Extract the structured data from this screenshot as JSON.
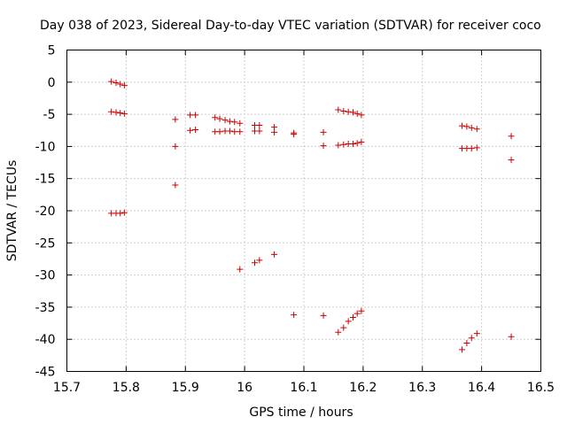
{
  "chart_data": {
    "type": "scatter",
    "title": "Day 038 of 2023, Sidereal Day-to-day VTEC variation (SDTVAR) for receiver coco",
    "xlabel": "GPS time / hours",
    "ylabel": "SDTVAR / TECUs",
    "xlim": [
      15.7,
      16.5
    ],
    "ylim": [
      -45,
      5
    ],
    "grid": true,
    "marker": "+",
    "color": "#cc0000",
    "x_ticks": [
      15.7,
      15.8,
      15.9,
      16.0,
      16.1,
      16.2,
      16.3,
      16.4,
      16.5
    ],
    "x_tick_labels": [
      "15.7",
      "15.8",
      "15.9",
      "16",
      "16.1",
      "16.2",
      "16.3",
      "16.4",
      "16.5"
    ],
    "y_ticks": [
      5,
      0,
      -5,
      -10,
      -15,
      -20,
      -25,
      -30,
      -35,
      -40,
      -45
    ],
    "y_tick_labels": [
      "5",
      "0",
      "-5",
      "-10",
      "-15",
      "-20",
      "-25",
      "-30",
      "-35",
      "-40",
      "-45"
    ],
    "series": [
      {
        "name": "SDTVAR",
        "points": [
          [
            15.775,
            0.1
          ],
          [
            15.783,
            -0.1
          ],
          [
            15.79,
            -0.3
          ],
          [
            15.797,
            -0.5
          ],
          [
            15.775,
            -4.6
          ],
          [
            15.783,
            -4.7
          ],
          [
            15.79,
            -4.8
          ],
          [
            15.797,
            -4.9
          ],
          [
            15.775,
            -20.4
          ],
          [
            15.783,
            -20.4
          ],
          [
            15.79,
            -20.4
          ],
          [
            15.797,
            -20.3
          ],
          [
            15.883,
            -5.8
          ],
          [
            15.883,
            -10.0
          ],
          [
            15.883,
            -16.0
          ],
          [
            15.908,
            -5.1
          ],
          [
            15.917,
            -5.1
          ],
          [
            15.908,
            -7.5
          ],
          [
            15.917,
            -7.4
          ],
          [
            15.95,
            -5.5
          ],
          [
            15.958,
            -5.7
          ],
          [
            15.967,
            -5.9
          ],
          [
            15.975,
            -6.1
          ],
          [
            15.983,
            -6.2
          ],
          [
            15.992,
            -6.4
          ],
          [
            15.95,
            -7.7
          ],
          [
            15.958,
            -7.7
          ],
          [
            15.967,
            -7.6
          ],
          [
            15.975,
            -7.6
          ],
          [
            15.983,
            -7.7
          ],
          [
            15.992,
            -7.7
          ],
          [
            15.992,
            -29.1
          ],
          [
            16.017,
            -6.7
          ],
          [
            16.025,
            -6.7
          ],
          [
            16.017,
            -7.6
          ],
          [
            16.025,
            -7.6
          ],
          [
            16.017,
            -28.1
          ],
          [
            16.025,
            -27.7
          ],
          [
            16.05,
            -7.0
          ],
          [
            16.05,
            -7.8
          ],
          [
            16.05,
            -26.8
          ],
          [
            16.083,
            -7.9
          ],
          [
            16.083,
            -8.1
          ],
          [
            16.083,
            -36.2
          ],
          [
            16.133,
            -7.8
          ],
          [
            16.133,
            -9.9
          ],
          [
            16.133,
            -36.3
          ],
          [
            16.158,
            -4.3
          ],
          [
            16.167,
            -4.5
          ],
          [
            16.175,
            -4.6
          ],
          [
            16.183,
            -4.7
          ],
          [
            16.19,
            -4.9
          ],
          [
            16.197,
            -5.1
          ],
          [
            16.158,
            -9.8
          ],
          [
            16.167,
            -9.7
          ],
          [
            16.175,
            -9.6
          ],
          [
            16.183,
            -9.6
          ],
          [
            16.19,
            -9.5
          ],
          [
            16.197,
            -9.3
          ],
          [
            16.158,
            -38.9
          ],
          [
            16.167,
            -38.2
          ],
          [
            16.175,
            -37.2
          ],
          [
            16.183,
            -36.6
          ],
          [
            16.19,
            -36.0
          ],
          [
            16.197,
            -35.6
          ],
          [
            16.367,
            -6.8
          ],
          [
            16.375,
            -6.9
          ],
          [
            16.383,
            -7.1
          ],
          [
            16.392,
            -7.3
          ],
          [
            16.367,
            -10.3
          ],
          [
            16.375,
            -10.3
          ],
          [
            16.383,
            -10.3
          ],
          [
            16.392,
            -10.2
          ],
          [
            16.367,
            -41.6
          ],
          [
            16.375,
            -40.6
          ],
          [
            16.383,
            -39.8
          ],
          [
            16.392,
            -39.1
          ],
          [
            16.45,
            -8.4
          ],
          [
            16.45,
            -12.1
          ],
          [
            16.45,
            -39.6
          ]
        ]
      }
    ]
  }
}
